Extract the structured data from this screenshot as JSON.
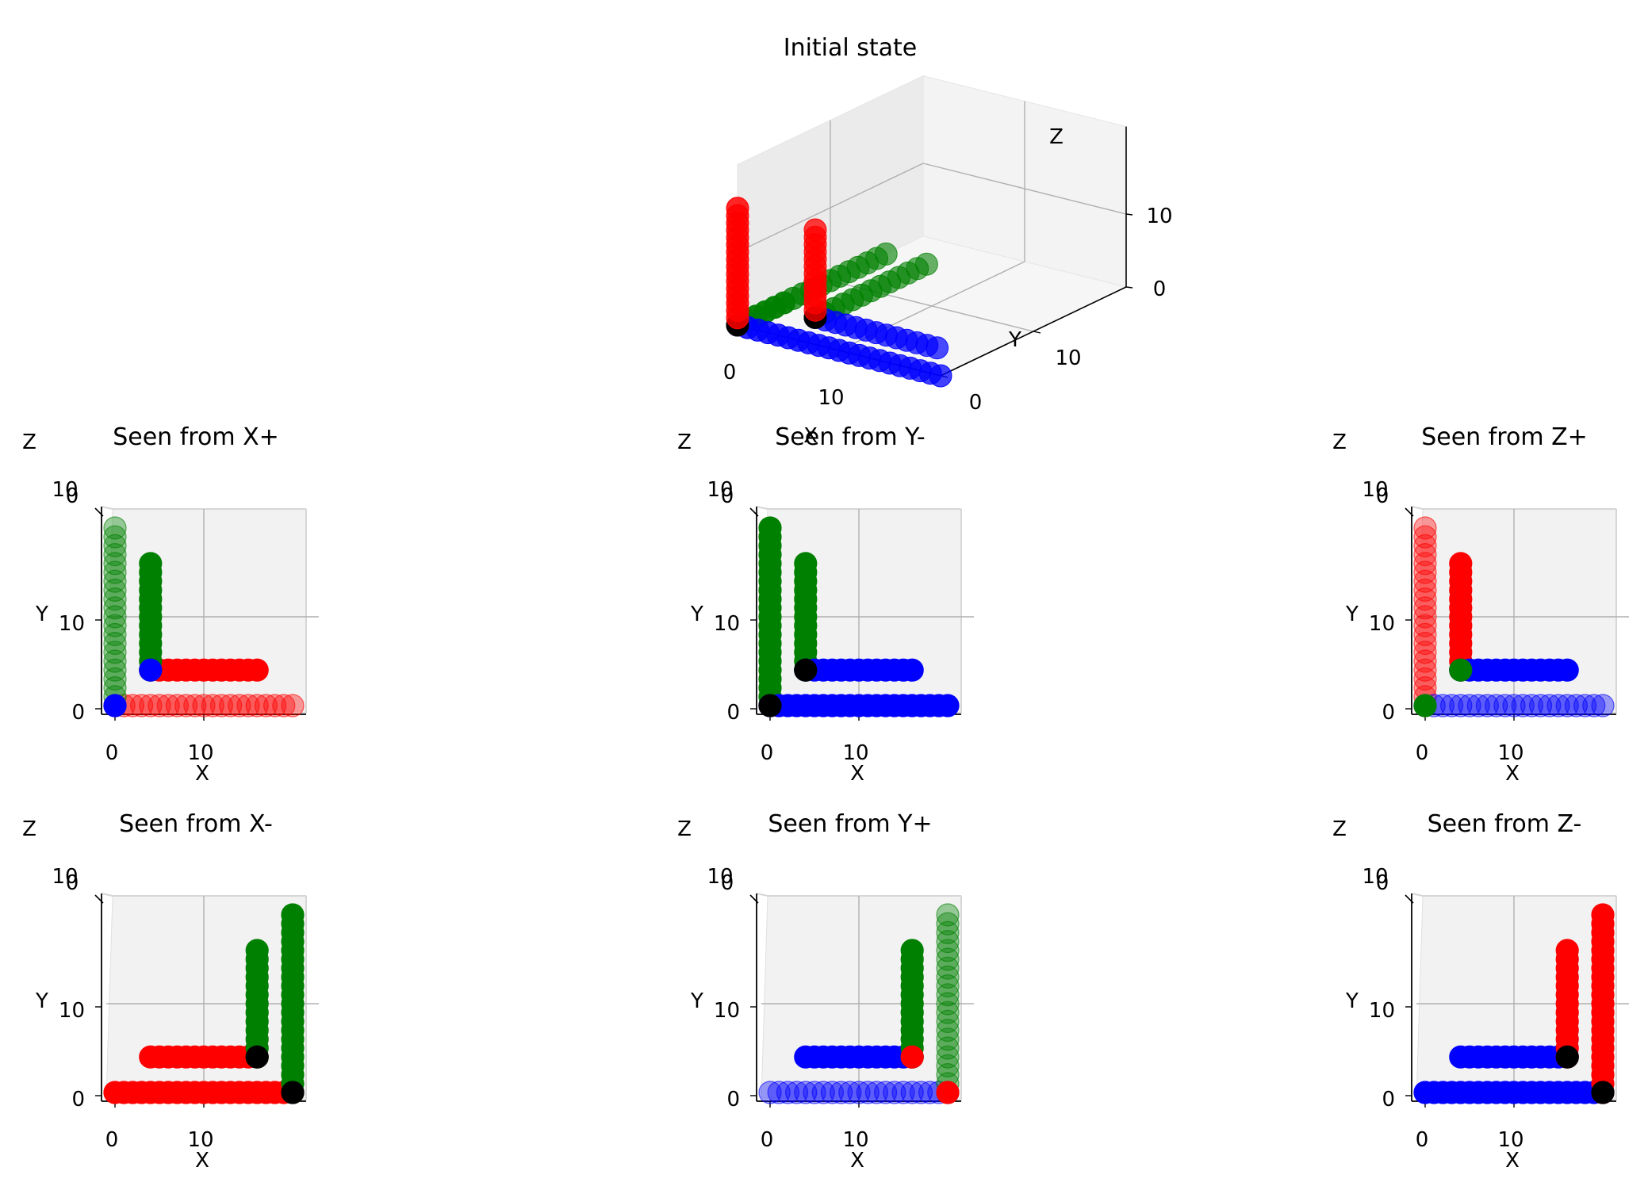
{
  "colors": {
    "red": "#ff0000",
    "green": "#008000",
    "blue": "#0000ff",
    "black": "#000000",
    "pane": "#f2f2f2",
    "grid": "#b0b0b0"
  },
  "chart_data": [
    {
      "type": "scatter",
      "title": "Initial state",
      "xlabel": "X",
      "ylabel": "Y",
      "zlabel": "Z",
      "xticks": [
        "0",
        "10"
      ],
      "yticks": [
        "0",
        "10"
      ],
      "zticks": [
        "0",
        "10"
      ],
      "grid": true,
      "series": [
        {
          "color": "red",
          "segments": [
            [
              0,
              0,
              0,
              0,
              0,
              16
            ],
            [
              4,
              4,
              0,
              4,
              4,
              12
            ]
          ]
        },
        {
          "color": "green",
          "segments": [
            [
              0,
              0,
              0,
              0,
              16,
              0
            ],
            [
              4,
              4,
              0,
              4,
              16,
              0
            ]
          ]
        },
        {
          "color": "blue",
          "segments": [
            [
              0,
              0,
              0,
              20,
              0,
              0
            ],
            [
              4,
              4,
              0,
              16,
              4,
              0
            ]
          ]
        },
        {
          "color": "black",
          "points": [
            [
              0,
              0,
              0
            ],
            [
              4,
              4,
              0
            ]
          ]
        }
      ]
    },
    {
      "type": "scatter",
      "title": "Seen from X+",
      "xlabel": "X",
      "ylabel": "Y",
      "zlabel": "Z",
      "xticks": [
        "0",
        "10"
      ],
      "yticks": [
        "0",
        "10"
      ],
      "zticks": [
        "0",
        "10"
      ],
      "grid": true,
      "series": [
        {
          "color": "red",
          "segments": [
            [
              4,
              4,
              4,
              16,
              4,
              4
            ]
          ]
        },
        {
          "color": "red",
          "faded": true,
          "segments": [
            [
              0,
              0,
              0,
              20,
              0,
              0
            ]
          ]
        },
        {
          "color": "green",
          "segments": [
            [
              4,
              4,
              4,
              4,
              16,
              4
            ]
          ]
        },
        {
          "color": "green",
          "faded": true,
          "segments": [
            [
              0,
              0,
              0,
              0,
              20,
              0
            ]
          ]
        },
        {
          "color": "blue",
          "points": [
            [
              4,
              4,
              4
            ],
            [
              0,
              0,
              0
            ]
          ]
        }
      ]
    },
    {
      "type": "scatter",
      "title": "Seen from Y-",
      "xlabel": "X",
      "ylabel": "Y",
      "zlabel": "Z",
      "xticks": [
        "0",
        "10"
      ],
      "yticks": [
        "0",
        "10"
      ],
      "zticks": [
        "0",
        "10"
      ],
      "grid": true,
      "series": [
        {
          "color": "green",
          "segments": [
            [
              0,
              0,
              0,
              0,
              20,
              0
            ],
            [
              4,
              4,
              4,
              4,
              16,
              4
            ]
          ]
        },
        {
          "color": "blue",
          "segments": [
            [
              0,
              0,
              0,
              20,
              0,
              0
            ],
            [
              4,
              4,
              4,
              16,
              4,
              4
            ]
          ]
        },
        {
          "color": "black",
          "points": [
            [
              4,
              4,
              4
            ],
            [
              0,
              0,
              0
            ]
          ]
        }
      ]
    },
    {
      "type": "scatter",
      "title": "Seen from Z+",
      "xlabel": "X",
      "ylabel": "Y",
      "zlabel": "Z",
      "xticks": [
        "0",
        "10"
      ],
      "yticks": [
        "0",
        "10"
      ],
      "zticks": [
        "0",
        "10"
      ],
      "grid": true,
      "series": [
        {
          "color": "red",
          "faded": true,
          "segments": [
            [
              0,
              0,
              0,
              0,
              20,
              0
            ]
          ]
        },
        {
          "color": "red",
          "segments": [
            [
              4,
              4,
              4,
              4,
              16,
              4
            ]
          ]
        },
        {
          "color": "blue",
          "faded": true,
          "segments": [
            [
              0,
              0,
              0,
              20,
              0,
              0
            ]
          ]
        },
        {
          "color": "blue",
          "segments": [
            [
              4,
              4,
              4,
              16,
              4,
              4
            ]
          ]
        },
        {
          "color": "green",
          "points": [
            [
              4,
              4,
              4
            ],
            [
              0,
              0,
              0
            ]
          ]
        }
      ]
    },
    {
      "type": "scatter",
      "title": "Seen from X-",
      "xlabel": "X",
      "ylabel": "Y",
      "zlabel": "Z",
      "xticks": [
        "0",
        "10"
      ],
      "yticks": [
        "0",
        "10"
      ],
      "zticks": [
        "0",
        "10"
      ],
      "grid": true,
      "series": [
        {
          "color": "red",
          "segments": [
            [
              0,
              0,
              0,
              20,
              0,
              0
            ],
            [
              4,
              4,
              4,
              16,
              4,
              4
            ]
          ]
        },
        {
          "color": "green",
          "segments": [
            [
              20,
              0,
              0,
              20,
              20,
              0
            ],
            [
              16,
              4,
              4,
              16,
              16,
              4
            ]
          ]
        },
        {
          "color": "black",
          "points": [
            [
              16,
              4,
              4
            ],
            [
              20,
              0,
              0
            ]
          ]
        }
      ]
    },
    {
      "type": "scatter",
      "title": "Seen from Y+",
      "xlabel": "X",
      "ylabel": "Y",
      "zlabel": "Z",
      "xticks": [
        "0",
        "10"
      ],
      "yticks": [
        "0",
        "10"
      ],
      "zticks": [
        "0",
        "10"
      ],
      "grid": true,
      "series": [
        {
          "color": "blue",
          "faded": true,
          "segments": [
            [
              0,
              0,
              0,
              20,
              0,
              0
            ]
          ]
        },
        {
          "color": "blue",
          "segments": [
            [
              4,
              4,
              4,
              16,
              4,
              4
            ]
          ]
        },
        {
          "color": "green",
          "faded": true,
          "segments": [
            [
              20,
              0,
              0,
              20,
              20,
              0
            ]
          ]
        },
        {
          "color": "green",
          "segments": [
            [
              16,
              4,
              4,
              16,
              16,
              4
            ]
          ]
        },
        {
          "color": "red",
          "points": [
            [
              16,
              4,
              4
            ],
            [
              20,
              0,
              0
            ]
          ]
        }
      ]
    },
    {
      "type": "scatter",
      "title": "Seen from Z-",
      "xlabel": "X",
      "ylabel": "Y",
      "zlabel": "Z",
      "xticks": [
        "0",
        "10"
      ],
      "yticks": [
        "0",
        "10"
      ],
      "zticks": [
        "0",
        "10"
      ],
      "grid": true,
      "series": [
        {
          "color": "blue",
          "segments": [
            [
              0,
              0,
              0,
              20,
              0,
              0
            ],
            [
              4,
              4,
              4,
              16,
              4,
              4
            ]
          ]
        },
        {
          "color": "red",
          "segments": [
            [
              20,
              0,
              0,
              20,
              20,
              0
            ],
            [
              16,
              4,
              4,
              16,
              16,
              4
            ]
          ]
        },
        {
          "color": "black",
          "points": [
            [
              16,
              4,
              4
            ],
            [
              20,
              0,
              0
            ]
          ]
        }
      ]
    }
  ]
}
